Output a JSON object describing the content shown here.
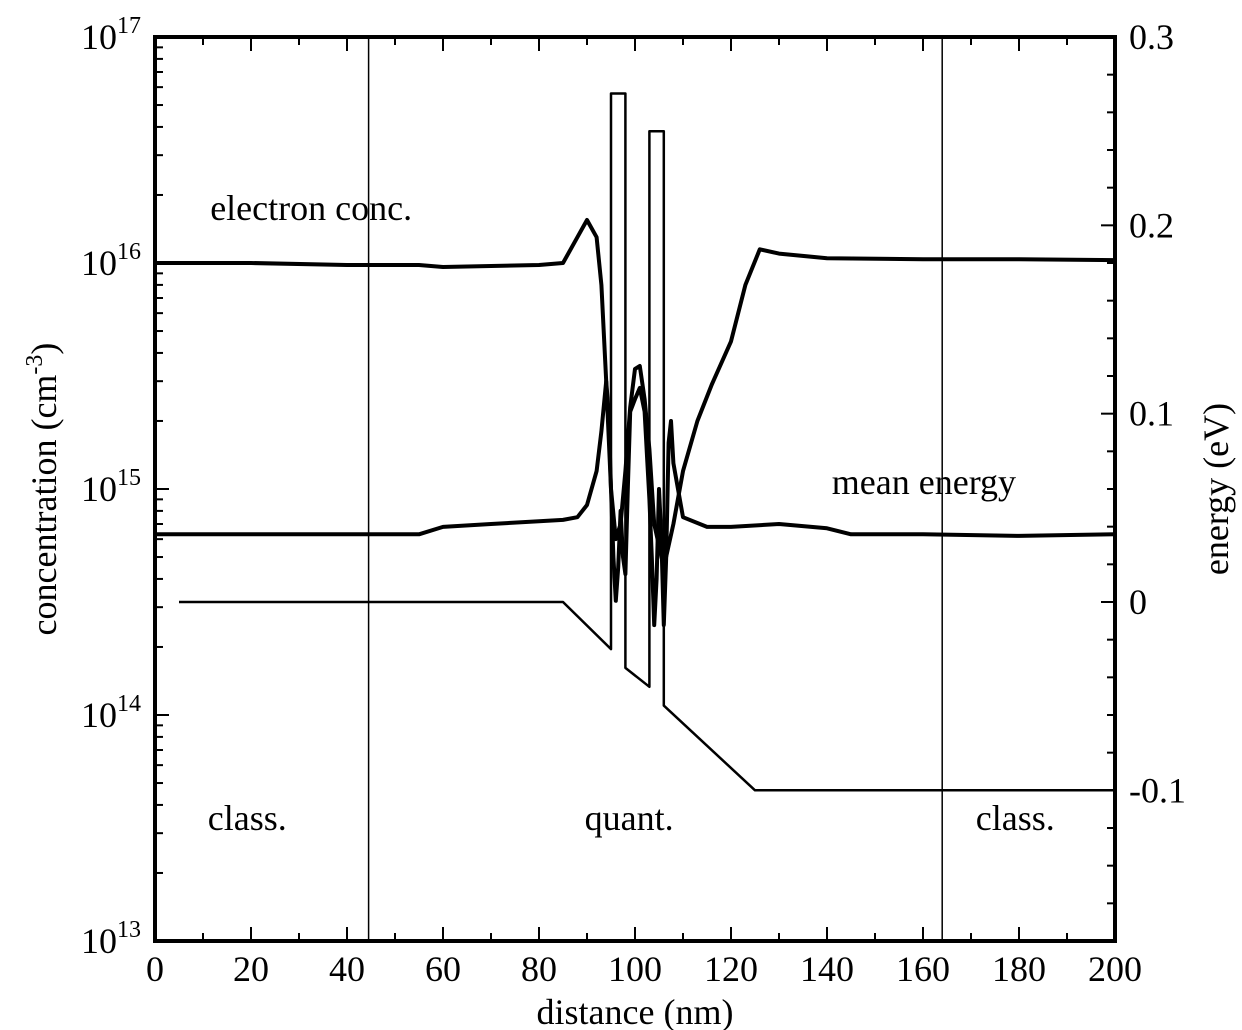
{
  "chart_data": {
    "type": "line",
    "xlabel": "distance (nm)",
    "ylabel_left": "concentration (cm",
    "ylabel_left_sup": "-3",
    "ylabel_left_close": ")",
    "ylabel_right": "energy (eV)",
    "xlim": [
      0,
      200
    ],
    "ylim_left": [
      10000000000000.0,
      1e+17
    ],
    "ylim_right": [
      -0.18,
      0.3
    ],
    "yscale_left": "log",
    "x_ticks": [
      "0",
      "20",
      "40",
      "60",
      "80",
      "100",
      "120",
      "140",
      "160",
      "180",
      "200"
    ],
    "y_left_ticks": [
      {
        "base": "10",
        "exp": "13",
        "value": 10000000000000.0
      },
      {
        "base": "10",
        "exp": "14",
        "value": 100000000000000.0
      },
      {
        "base": "10",
        "exp": "15",
        "value": 1000000000000000.0
      },
      {
        "base": "10",
        "exp": "16",
        "value": 1e+16
      },
      {
        "base": "10",
        "exp": "17",
        "value": 1e+17
      }
    ],
    "y_right_ticks": [
      "-0.1",
      "0",
      "0.1",
      "0.2",
      "0.3"
    ],
    "region_boundaries": [
      44.5,
      164
    ],
    "annotations": {
      "electron_conc": "electron conc.",
      "mean_energy": "mean energy",
      "class_left": "class.",
      "quant": "quant.",
      "class_right": "class."
    },
    "series": [
      {
        "axis": "left",
        "x": [
          0,
          20,
          40,
          55,
          60,
          70,
          80,
          85,
          88,
          90,
          92,
          93,
          94,
          95,
          96,
          97,
          98,
          99,
          100,
          101,
          102,
          103,
          104,
          106,
          108,
          110,
          113,
          116,
          120,
          123,
          126,
          130,
          140,
          160,
          180,
          200
        ],
        "y": [
          1e+16,
          1e+16,
          9800000000000000.0,
          9800000000000000.0,
          9600000000000000.0,
          9700000000000000.0,
          9800000000000000.0,
          1e+16,
          1.3e+16,
          1.55e+16,
          1.3e+16,
          8000000000000000.0,
          3000000000000000.0,
          1000000000000000.0,
          600000000000000.0,
          700000000000000.0,
          1200000000000000.0,
          2300000000000000.0,
          3400000000000000.0,
          3500000000000000.0,
          2500000000000000.0,
          1500000000000000.0,
          700000000000000.0,
          450000000000000.0,
          700000000000000.0,
          1200000000000000.0,
          2000000000000000.0,
          2900000000000000.0,
          4500000000000000.0,
          8000000000000000.0,
          1.15e+16,
          1.1e+16,
          1.05e+16,
          1.04e+16,
          1.04e+16,
          1.03e+16
        ]
      },
      {
        "axis": "left",
        "x": [
          0,
          20,
          40,
          55,
          60,
          70,
          80,
          85,
          88,
          90,
          92,
          93,
          94,
          94.5,
          95,
          95.5,
          96,
          96.5,
          97,
          97.5,
          98,
          98.5,
          99,
          100,
          101,
          102,
          102.5,
          103,
          103.5,
          104,
          104.5,
          105,
          105.5,
          106,
          106.5,
          107,
          107.5,
          108,
          110,
          115,
          120,
          130,
          140,
          145,
          160,
          180,
          200
        ],
        "y": [
          630000000000000.0,
          630000000000000.0,
          630000000000000.0,
          630000000000000.0,
          680000000000000.0,
          700000000000000.0,
          720000000000000.0,
          730000000000000.0,
          750000000000000.0,
          850000000000000.0,
          1200000000000000.0,
          1800000000000000.0,
          3000000000000000.0,
          2200000000000000.0,
          1000000000000000.0,
          500000000000000.0,
          320000000000000.0,
          450000000000000.0,
          800000000000000.0,
          500000000000000.0,
          420000000000000.0,
          1000000000000000.0,
          2200000000000000.0,
          2500000000000000.0,
          2800000000000000.0,
          2200000000000000.0,
          1400000000000000.0,
          900000000000000.0,
          500000000000000.0,
          250000000000000.0,
          400000000000000.0,
          1000000000000000.0,
          600000000000000.0,
          250000000000000.0,
          500000000000000.0,
          1600000000000000.0,
          2000000000000000.0,
          1300000000000000.0,
          750000000000000.0,
          680000000000000.0,
          680000000000000.0,
          700000000000000.0,
          670000000000000.0,
          630000000000000.0,
          630000000000000.0,
          620000000000000.0,
          630000000000000.0
        ]
      },
      {
        "axis": "right",
        "x": [
          5,
          85,
          95,
          95,
          98,
          98,
          103,
          103,
          106,
          106,
          125,
          200
        ],
        "y": [
          0,
          0,
          -0.025,
          0.27,
          0.27,
          -0.035,
          -0.045,
          0.25,
          0.25,
          -0.055,
          -0.1,
          -0.1
        ]
      }
    ]
  }
}
